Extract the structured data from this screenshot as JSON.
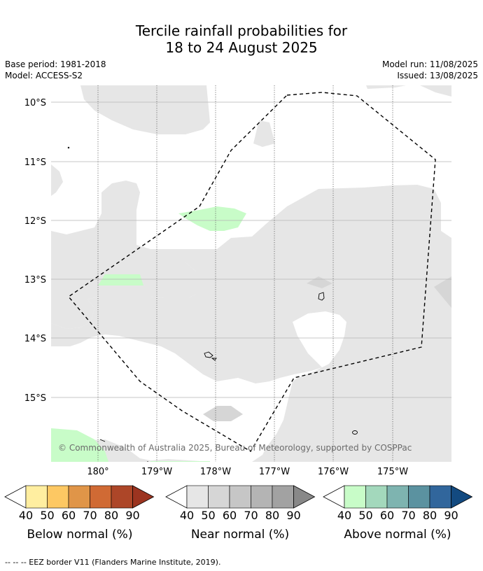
{
  "title_line1": "Tercile rainfall probabilities for",
  "title_line2": "18 to 24 August 2025",
  "base_period": "Base period: 1981-2018",
  "model": "Model: ACCESS-S2",
  "model_run": "Model run: 11/08/2025",
  "issued": "Issued: 13/08/2025",
  "copyright": "© Commonwealth of Australia 2025, Bureau of Meteorology, supported by COSPPac",
  "lat_labels": [
    "10°S",
    "11°S",
    "12°S",
    "13°S",
    "14°S",
    "15°S"
  ],
  "lon_labels": [
    "180°",
    "179°W",
    "178°W",
    "177°W",
    "176°W",
    "175°W"
  ],
  "colorbars": [
    {
      "label": "Below normal (%)",
      "ticks": [
        "40",
        "50",
        "60",
        "70",
        "80",
        "90"
      ],
      "colors": [
        "#ffffff",
        "#ffeea0",
        "#fdc863",
        "#e09548",
        "#d06a34",
        "#ad4628",
        "#9c3420"
      ]
    },
    {
      "label": "Near normal (%)",
      "ticks": [
        "40",
        "50",
        "60",
        "70",
        "80",
        "90"
      ],
      "colors": [
        "#ffffff",
        "#e6e6e6",
        "#d6d6d6",
        "#c6c6c6",
        "#b4b4b4",
        "#a2a2a2",
        "#888888"
      ]
    },
    {
      "label": "Above normal (%)",
      "ticks": [
        "40",
        "50",
        "60",
        "70",
        "80",
        "90"
      ],
      "colors": [
        "#ffffff",
        "#c8fcc8",
        "#a3d8bc",
        "#7eb4b0",
        "#5b92a0",
        "#31669c",
        "#134a80"
      ]
    }
  ],
  "footnote": "--  --  -- EEZ border V11 (Flanders Marine Institute, 2019).",
  "colors": {
    "near_normal_40": "#e6e6e6",
    "above_normal_40": "#c8fcc8",
    "near_normal_50": "#d6d6d6"
  }
}
